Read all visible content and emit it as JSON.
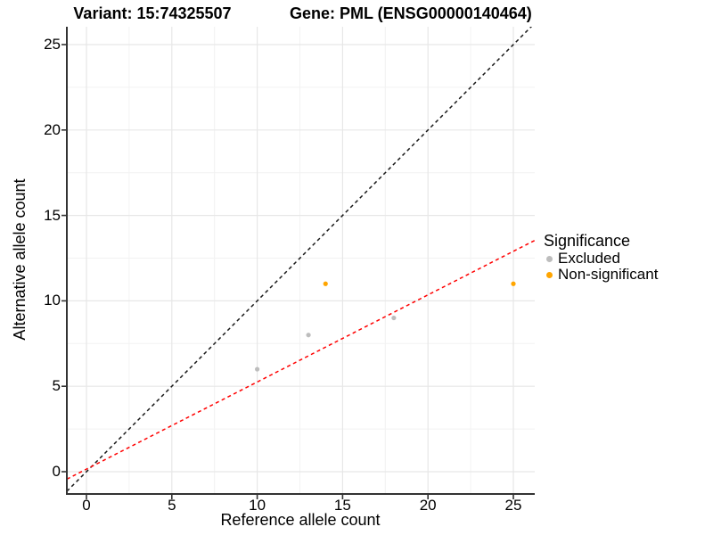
{
  "chart_data": {
    "type": "scatter",
    "title_left": "Variant: 15:74325507",
    "title_right": "Gene: PML (ENSG00000140464)",
    "xlabel": "Reference allele count",
    "ylabel": "Alternative allele count",
    "x_ticks": [
      0,
      5,
      10,
      15,
      20,
      25
    ],
    "y_ticks": [
      0,
      5,
      10,
      15,
      20,
      25
    ],
    "xlim": [
      -1.15,
      26.25
    ],
    "ylim": [
      -1.3,
      26.05
    ],
    "grid": "major+minor",
    "colors": {
      "grid_major": "#E7E7E7",
      "grid_minor": "#F2F2F2",
      "axis_line": "#333333",
      "identity_line": "#1A1A1A",
      "fit_line": "#FF0000"
    },
    "series": [
      {
        "name": "Excluded",
        "color": "#BDBDBD",
        "points": [
          [
            10,
            6
          ],
          [
            13,
            8
          ],
          [
            18,
            9
          ]
        ]
      },
      {
        "name": "Non-significant",
        "color": "#FFA500",
        "points": [
          [
            14,
            11
          ],
          [
            25,
            11
          ]
        ]
      }
    ],
    "lines": [
      {
        "name": "identity-line",
        "style": "dashed",
        "color": "#1A1A1A",
        "slope": 1,
        "intercept": 0
      },
      {
        "name": "expected-ratio-line",
        "style": "dashed",
        "color": "#FF0000",
        "slope": 0.51,
        "intercept": 0.15
      }
    ],
    "legend": {
      "title": "Significance",
      "position": "right",
      "entries": [
        {
          "label": "Excluded",
          "color": "#BDBDBD"
        },
        {
          "label": "Non-significant",
          "color": "#FFA500"
        }
      ]
    }
  }
}
